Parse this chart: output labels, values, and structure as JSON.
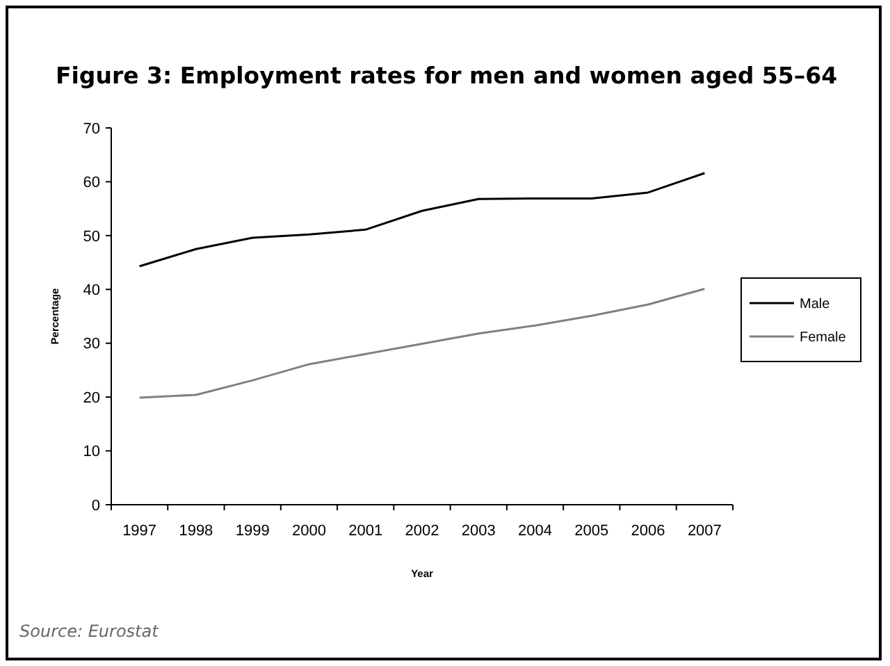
{
  "chart_data": {
    "type": "line",
    "title": "Figure 3: Employment rates for men and women aged 55–64",
    "xlabel": "Year",
    "ylabel": "Percentage",
    "categories": [
      "1997",
      "1998",
      "1999",
      "2000",
      "2001",
      "2002",
      "2003",
      "2004",
      "2005",
      "2006",
      "2007"
    ],
    "series": [
      {
        "name": "Male",
        "color": "#000000",
        "values": [
          44.3,
          47.5,
          49.6,
          50.2,
          51.1,
          54.6,
          56.8,
          56.9,
          56.9,
          58.0,
          61.6
        ]
      },
      {
        "name": "Female",
        "color": "#808080",
        "values": [
          19.9,
          20.4,
          23.1,
          26.1,
          28.0,
          29.9,
          31.8,
          33.3,
          35.1,
          37.2,
          40.1
        ]
      }
    ],
    "ylim": [
      0,
      70
    ],
    "yticks": [
      0,
      10,
      20,
      30,
      40,
      50,
      60,
      70
    ],
    "grid": false,
    "legend": "right",
    "marker": "none",
    "line_style": "solid",
    "annotations": [
      "Source: Eurostat"
    ]
  }
}
